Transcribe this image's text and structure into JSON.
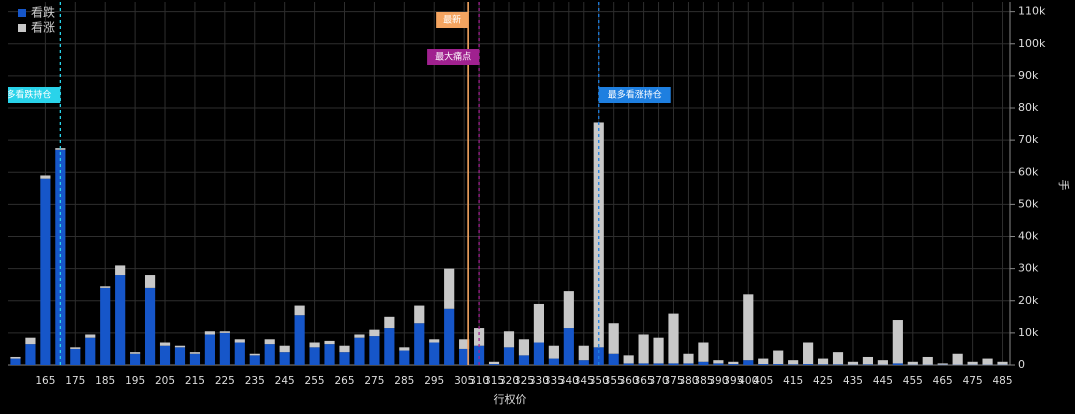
{
  "chart_data": {
    "type": "stacked_bar",
    "xlabel": "行权价",
    "ylabel": "手",
    "categories": [
      null,
      null,
      165,
      null,
      175,
      null,
      185,
      null,
      195,
      null,
      205,
      null,
      215,
      null,
      225,
      null,
      235,
      null,
      245,
      null,
      255,
      null,
      265,
      null,
      275,
      null,
      285,
      null,
      295,
      null,
      305,
      310,
      315,
      320,
      325,
      330,
      335,
      340,
      345,
      350,
      355,
      360,
      365,
      370,
      375,
      380,
      385,
      390,
      395,
      400,
      405,
      null,
      415,
      null,
      425,
      null,
      435,
      null,
      445,
      null,
      455,
      null,
      465,
      null,
      475,
      null,
      485
    ],
    "series": [
      {
        "name": "看跌",
        "color": "#1656c9",
        "values": [
          2000,
          6500,
          58000,
          67000,
          5000,
          8500,
          24000,
          28000,
          3500,
          24000,
          6000,
          5500,
          3500,
          9500,
          10000,
          7000,
          3000,
          6500,
          4000,
          15500,
          5500,
          6500,
          4000,
          8500,
          9000,
          11500,
          4500,
          13000,
          7000,
          17500,
          5000,
          6000,
          300,
          5500,
          3000,
          7000,
          2000,
          11500,
          1500,
          5500,
          3500,
          500,
          500,
          500,
          500,
          500,
          1000,
          500,
          300,
          1500,
          300,
          300,
          200,
          300,
          200,
          200,
          100,
          200,
          100,
          500,
          100,
          100,
          100,
          100,
          100,
          100,
          100
        ]
      },
      {
        "name": "看涨",
        "color": "#c8c8c8",
        "values": [
          500,
          2000,
          1000,
          500,
          500,
          1000,
          500,
          3000,
          500,
          4000,
          1000,
          500,
          500,
          1000,
          500,
          1000,
          500,
          1500,
          2000,
          3000,
          1500,
          1000,
          2000,
          1000,
          2000,
          3500,
          1000,
          5500,
          1000,
          12500,
          3000,
          5500,
          700,
          5000,
          5000,
          12000,
          4000,
          11500,
          4500,
          70000,
          9500,
          2500,
          9000,
          8000,
          15500,
          3000,
          6000,
          1000,
          700,
          20500,
          1700,
          4200,
          1300,
          6700,
          1800,
          3800,
          900,
          2300,
          1400,
          13500,
          900,
          2400,
          400,
          3400,
          900,
          1900,
          900
        ]
      }
    ],
    "annotations": [
      {
        "label": "最多看跌持仓",
        "at": 3,
        "color": "#29d3ea",
        "dashed": true,
        "side": "left"
      },
      {
        "label": "最新",
        "at": 30,
        "color": "#f4a460",
        "dashed": false,
        "side": "left"
      },
      {
        "label": "最大痛点",
        "at": 31,
        "color": "#a0218f",
        "dashed": true,
        "side": "left"
      },
      {
        "label": "最多看涨持仓",
        "at": 39,
        "color": "#1e7fe0",
        "dashed": true,
        "side": "right"
      }
    ],
    "ylim": [
      0,
      113000
    ],
    "yticks": [
      0,
      {
        "value": 10000,
        "label": "10k"
      },
      {
        "value": 20000,
        "label": "20k"
      },
      {
        "value": 30000,
        "label": "30k"
      },
      {
        "value": 40000,
        "label": "40k"
      },
      {
        "value": 50000,
        "label": "50k"
      },
      {
        "value": 60000,
        "label": "60k"
      },
      {
        "value": 70000,
        "label": "70k"
      },
      {
        "value": 80000,
        "label": "80k"
      },
      {
        "value": 90000,
        "label": "90k"
      },
      {
        "value": 100000,
        "label": "100k"
      },
      {
        "value": 110000,
        "label": "110k"
      }
    ],
    "grid": true,
    "legend": "top-left"
  }
}
